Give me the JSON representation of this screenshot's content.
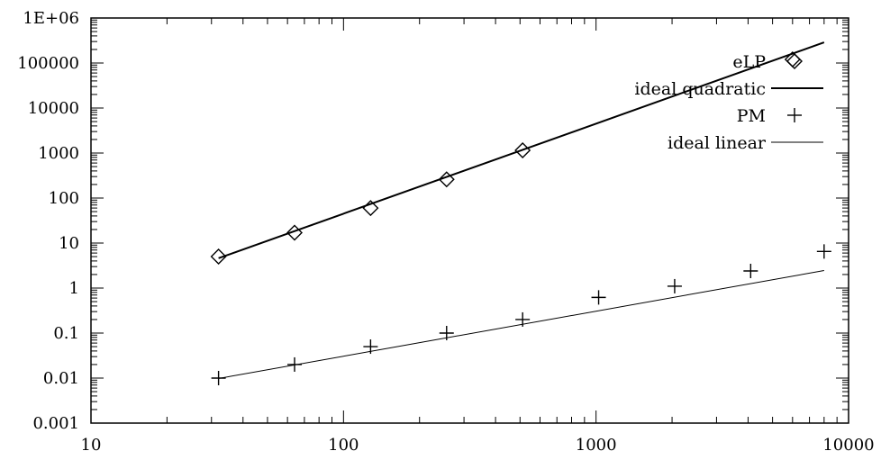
{
  "chart_data": {
    "type": "scatter",
    "title": "",
    "xlabel": "",
    "ylabel": "",
    "x_scale": "log",
    "y_scale": "log",
    "xlim": [
      10,
      10000
    ],
    "ylim": [
      0.001,
      1000000
    ],
    "x_ticks": [
      "10",
      "100",
      "1000",
      "10000"
    ],
    "y_ticks": [
      "0.001",
      "0.01",
      "0.1",
      "1",
      "10",
      "100",
      "1000",
      "10000",
      "100000",
      "1E+06"
    ],
    "grid": false,
    "legend_position": "top-right",
    "series": [
      {
        "name": "eLP",
        "kind": "points",
        "marker": "diamond",
        "x": [
          32,
          64,
          128,
          256,
          512,
          6000
        ],
        "y": [
          5,
          17,
          60,
          260,
          1150,
          120000
        ]
      },
      {
        "name": "ideal quadratic",
        "kind": "line",
        "stroke_width": 2,
        "x": [
          32,
          8000
        ],
        "y": [
          4.6,
          287500
        ]
      },
      {
        "name": "PM",
        "kind": "points",
        "marker": "plus",
        "x": [
          32,
          64,
          128,
          256,
          512,
          1024,
          2048,
          4096,
          8000
        ],
        "y": [
          0.01,
          0.02,
          0.05,
          0.1,
          0.2,
          0.62,
          1.1,
          2.4,
          6.5
        ]
      },
      {
        "name": "ideal linear",
        "kind": "line",
        "stroke_width": 1,
        "x": [
          32,
          8000
        ],
        "y": [
          0.0098,
          2.45
        ]
      }
    ]
  }
}
